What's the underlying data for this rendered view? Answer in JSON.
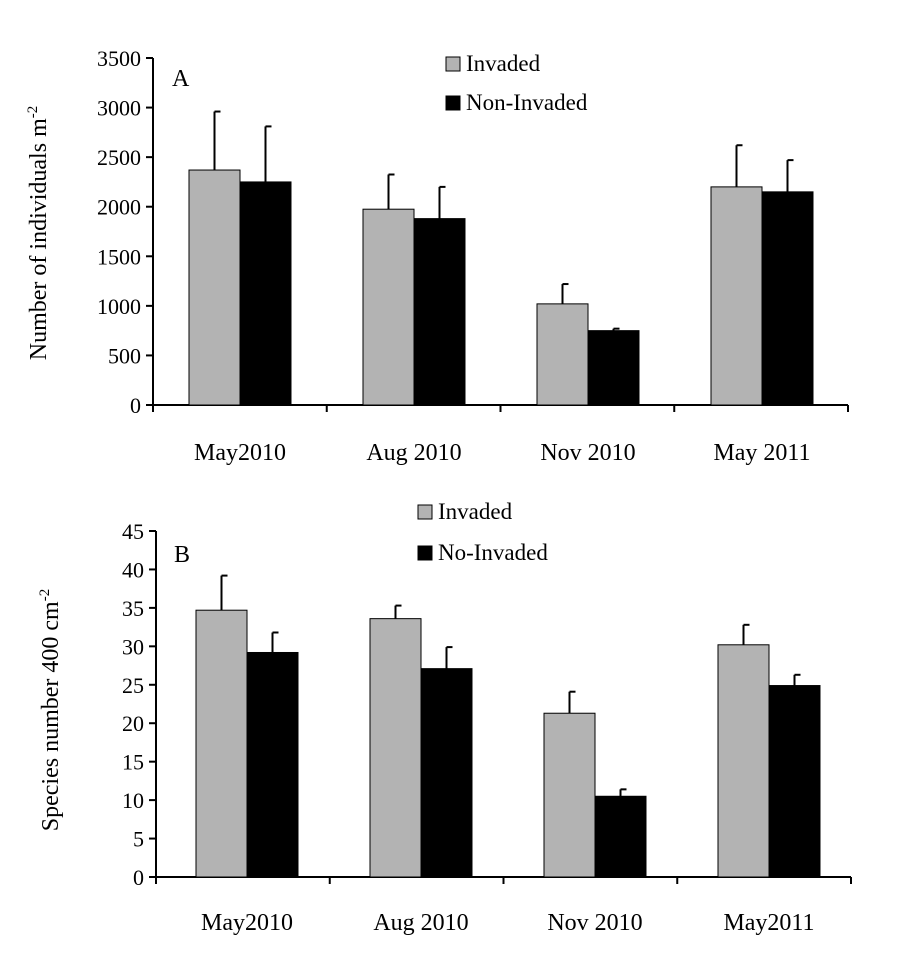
{
  "chart_data": [
    {
      "type": "bar",
      "panel_label": "A",
      "categories": [
        "May2010",
        "Aug 2010",
        "Nov 2010",
        "May 2011"
      ],
      "series": [
        {
          "name": "Invaded",
          "color": "#b3b3b3",
          "values": [
            2370,
            1975,
            1020,
            2200
          ],
          "errors": [
            590,
            350,
            200,
            420
          ]
        },
        {
          "name": "Non-Invaded",
          "color": "#000000",
          "values": [
            2250,
            1880,
            750,
            2150
          ],
          "errors": [
            560,
            320,
            20,
            320
          ]
        }
      ],
      "ylabel": "Number of individuals m",
      "ylabel_sup": "-2",
      "ylim": [
        0,
        3500
      ],
      "yticks": [
        0,
        500,
        1000,
        1500,
        2000,
        2500,
        3000,
        3500
      ],
      "legend_position": "top-center"
    },
    {
      "type": "bar",
      "panel_label": "B",
      "categories": [
        "May2010",
        "Aug 2010",
        "Nov 2010",
        "May2011"
      ],
      "series": [
        {
          "name": "Invaded",
          "color": "#b3b3b3",
          "values": [
            34.7,
            33.6,
            21.3,
            30.2
          ],
          "errors": [
            4.5,
            1.7,
            2.8,
            2.6
          ]
        },
        {
          "name": "No-Invaded",
          "color": "#000000",
          "values": [
            29.2,
            27.1,
            10.5,
            24.9
          ],
          "errors": [
            2.6,
            2.8,
            0.9,
            1.4
          ]
        }
      ],
      "ylabel": "Species number 400 cm",
      "ylabel_sup": "-2",
      "ylim": [
        0,
        45
      ],
      "yticks": [
        0,
        5,
        10,
        15,
        20,
        25,
        30,
        35,
        40,
        45
      ],
      "legend_position": "top-center"
    }
  ]
}
